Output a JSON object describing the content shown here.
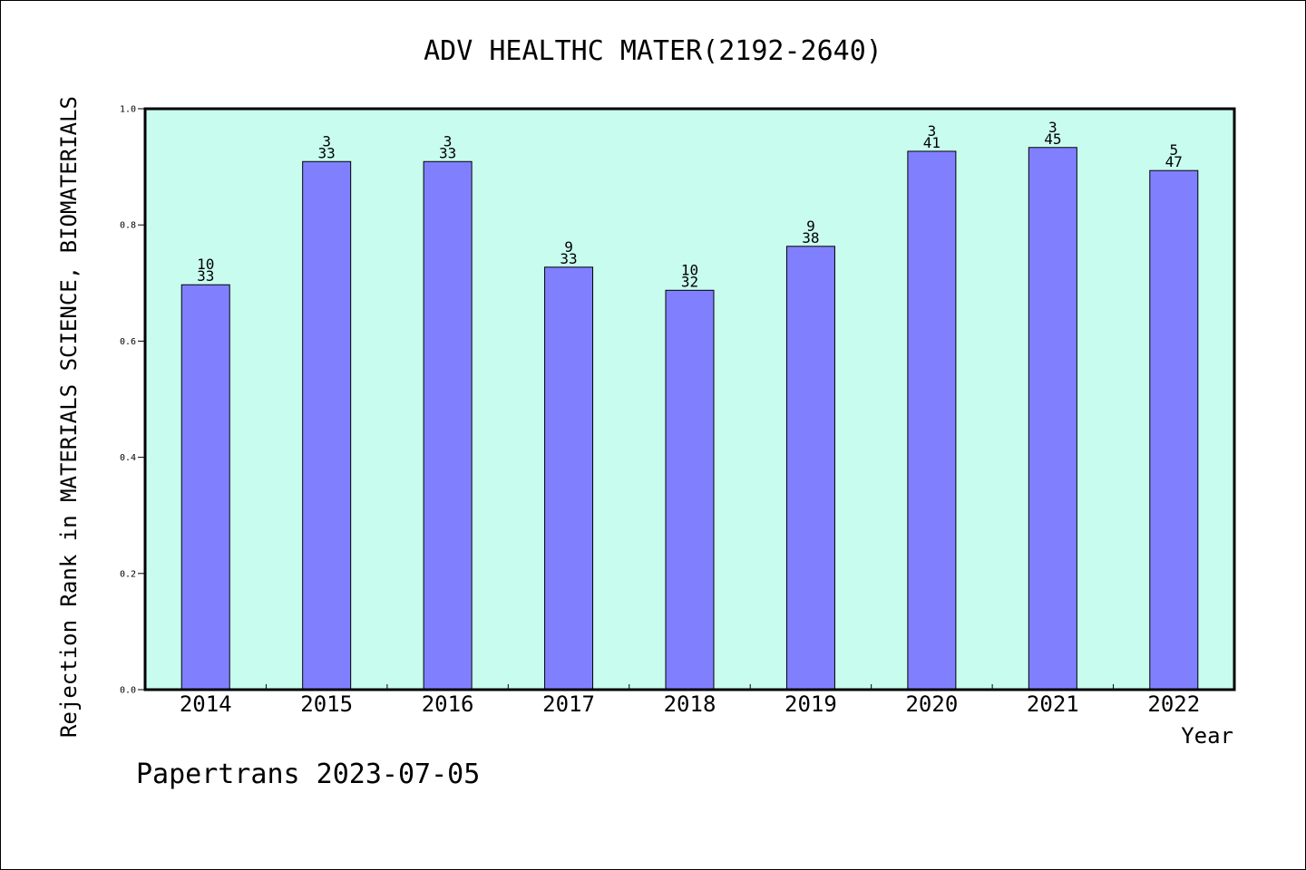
{
  "chart_data": {
    "type": "bar",
    "title": "ADV HEALTHC MATER(2192-2640)",
    "xlabel": "Year",
    "ylabel": "Rejection Rank in MATERIALS SCIENCE, BIOMATERIALS",
    "ylim": [
      0,
      1.0
    ],
    "yticks": [
      "0.0",
      "0.2",
      "0.4",
      "0.6",
      "0.8",
      "1.0"
    ],
    "categories": [
      "2014",
      "2015",
      "2016",
      "2017",
      "2018",
      "2019",
      "2020",
      "2021",
      "2022"
    ],
    "values": [
      0.697,
      0.9091,
      0.9091,
      0.7273,
      0.6875,
      0.7632,
      0.9268,
      0.9333,
      0.8936
    ],
    "rank_labels": [
      "10",
      "3",
      "3",
      "9",
      "10",
      "9",
      "3",
      "3",
      "5"
    ],
    "total_labels": [
      "33",
      "33",
      "33",
      "33",
      "32",
      "38",
      "41",
      "45",
      "47"
    ],
    "grid": false,
    "legend": "none"
  },
  "footer": {
    "text": "Papertrans 2023-07-05"
  },
  "colors": {
    "plot_background": "#c8fcee",
    "bar_fill": "#8080ff",
    "bar_stroke": "#000000",
    "axis": "#000000"
  }
}
